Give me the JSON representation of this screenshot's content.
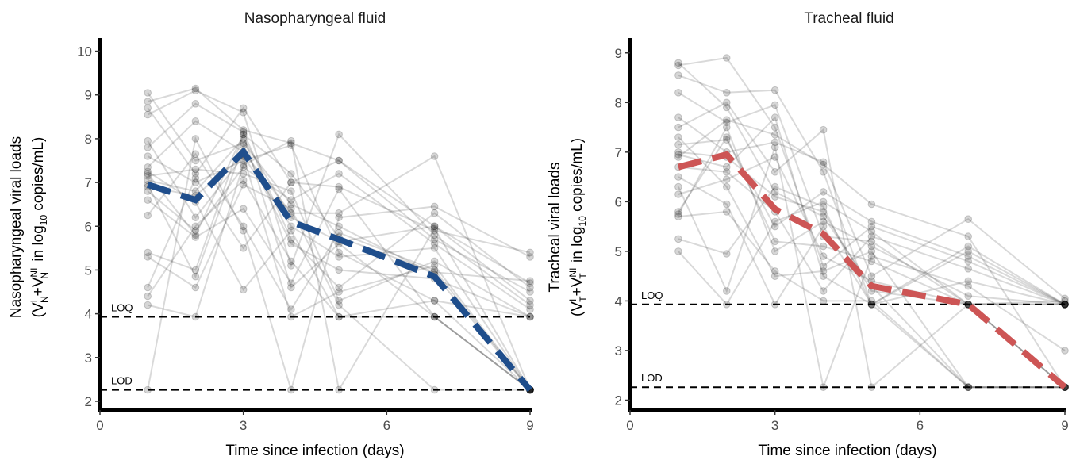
{
  "chart_data": [
    {
      "type": "line",
      "title": "Nasopharyngeal fluid",
      "xlabel": "Time since infection (days)",
      "ylabel_line1": "Nasopharyngeal viral loads",
      "ylabel_line2": {
        "open": "(V",
        "sup1": "I",
        "sub1": "N",
        "plus": "+V",
        "sup2": "NI",
        "sub2": "N",
        "mid": " in log",
        "sub3": "10",
        "end": " copies/mL)"
      },
      "xlim": [
        0,
        9
      ],
      "ylim": [
        1.8,
        10.3
      ],
      "xticks": [
        0,
        3,
        6,
        9
      ],
      "yticks": [
        2,
        3,
        4,
        5,
        6,
        7,
        8,
        9,
        10
      ],
      "reference_lines": [
        {
          "label": "LOQ",
          "y": 3.93
        },
        {
          "label": "LOD",
          "y": 2.26
        }
      ],
      "mean_color": "#1f4e8c",
      "mean_curve": {
        "x": [
          1,
          2,
          3,
          4,
          5,
          7,
          9
        ],
        "y": [
          6.95,
          6.6,
          7.7,
          6.1,
          5.7,
          4.85,
          2.26
        ]
      },
      "individuals": [
        {
          "x": [
            1,
            2,
            3,
            4,
            5,
            7,
            9
          ],
          "y": [
            9.05,
            7.5,
            7.9,
            6.5,
            6.0,
            4.9,
            2.26
          ]
        },
        {
          "x": [
            1,
            2,
            3,
            4,
            5,
            7,
            9
          ],
          "y": [
            8.85,
            9.15,
            8.2,
            7.9,
            7.5,
            6.0,
            4.7
          ]
        },
        {
          "x": [
            1,
            2,
            3,
            4,
            5,
            7,
            9
          ],
          "y": [
            8.7,
            7.2,
            8.7,
            7.0,
            6.9,
            5.9,
            5.4
          ]
        },
        {
          "x": [
            1,
            2,
            3,
            4,
            5,
            7,
            9
          ],
          "y": [
            8.55,
            9.1,
            8.6,
            5.1,
            8.1,
            5.8,
            4.2
          ]
        },
        {
          "x": [
            1,
            2,
            3,
            4,
            5,
            7,
            9
          ],
          "y": [
            7.95,
            6.2,
            7.6,
            6.0,
            5.3,
            5.5,
            2.26
          ]
        },
        {
          "x": [
            1,
            2,
            3,
            4,
            5,
            7,
            9
          ],
          "y": [
            7.8,
            8.8,
            8.15,
            5.7,
            4.6,
            6.3,
            4.6
          ]
        },
        {
          "x": [
            1,
            2,
            3,
            4,
            5,
            7,
            9
          ],
          "y": [
            7.6,
            7.0,
            7.5,
            7.85,
            5.4,
            4.3,
            2.26
          ]
        },
        {
          "x": [
            1,
            2,
            3,
            4,
            5,
            7,
            9
          ],
          "y": [
            7.35,
            8.4,
            7.7,
            6.3,
            6.3,
            7.6,
            2.26
          ]
        },
        {
          "x": [
            1,
            2,
            3,
            4,
            5,
            7,
            9
          ],
          "y": [
            7.25,
            6.55,
            4.55,
            5.9,
            3.93,
            3.93,
            2.26
          ]
        },
        {
          "x": [
            1,
            2,
            3,
            4,
            5,
            7,
            9
          ],
          "y": [
            7.15,
            7.3,
            7.2,
            6.8,
            4.3,
            5.2,
            3.93
          ]
        },
        {
          "x": [
            1,
            2,
            3,
            4,
            5,
            7,
            9
          ],
          "y": [
            7.05,
            6.8,
            8.0,
            6.2,
            5.65,
            6.0,
            4.3
          ]
        },
        {
          "x": [
            1,
            2,
            3,
            4,
            5,
            7,
            9
          ],
          "y": [
            6.95,
            4.85,
            7.85,
            5.6,
            5.0,
            4.8,
            3.93
          ]
        },
        {
          "x": [
            1,
            2,
            3,
            4,
            5,
            7,
            9
          ],
          "y": [
            6.8,
            5.9,
            7.35,
            6.6,
            7.2,
            5.6,
            4.1
          ]
        },
        {
          "x": [
            1,
            2,
            3,
            4,
            5,
            7,
            9
          ],
          "y": [
            6.6,
            5.75,
            6.4,
            4.7,
            6.85,
            3.93,
            2.26
          ]
        },
        {
          "x": [
            1,
            2,
            3,
            4,
            5,
            7,
            9
          ],
          "y": [
            6.25,
            7.65,
            6.0,
            4.1,
            5.85,
            5.0,
            2.26
          ]
        },
        {
          "x": [
            1,
            2,
            3,
            4,
            5,
            7,
            9
          ],
          "y": [
            5.4,
            5.0,
            8.1,
            4.6,
            5.6,
            3.93,
            2.26
          ]
        },
        {
          "x": [
            1,
            2,
            3,
            4,
            5,
            7,
            9
          ],
          "y": [
            5.3,
            4.6,
            6.95,
            6.4,
            4.2,
            2.26,
            2.26
          ]
        },
        {
          "x": [
            1,
            2,
            3,
            4,
            5,
            7,
            9
          ],
          "y": [
            4.6,
            7.1,
            5.5,
            7.0,
            7.5,
            5.7,
            4.5
          ]
        },
        {
          "x": [
            1,
            2,
            3,
            4,
            5,
            7,
            9
          ],
          "y": [
            4.4,
            6.0,
            7.05,
            5.2,
            3.93,
            4.3,
            3.93
          ]
        },
        {
          "x": [
            1,
            2,
            3,
            4,
            5,
            7,
            9
          ],
          "y": [
            4.2,
            3.93,
            7.4,
            7.95,
            2.26,
            5.95,
            2.26
          ]
        },
        {
          "x": [
            1,
            2,
            3,
            4,
            5,
            7,
            9
          ],
          "y": [
            2.26,
            8.0,
            5.9,
            2.26,
            6.2,
            6.45,
            5.3
          ]
        },
        {
          "x": [
            1,
            2,
            3,
            4,
            5,
            7,
            9
          ],
          "y": [
            6.9,
            6.7,
            7.6,
            3.93,
            4.5,
            5.1,
            2.26
          ]
        },
        {
          "x": [
            1,
            2,
            3,
            4,
            5,
            7,
            9
          ],
          "y": [
            7.2,
            5.8,
            8.1,
            7.2,
            5.75,
            4.95,
            4.75
          ]
        }
      ]
    },
    {
      "type": "line",
      "title": "Tracheal fluid",
      "xlabel": "Time since infection (days)",
      "ylabel_line1": "Tracheal viral loads",
      "ylabel_line2": {
        "open": "(V",
        "sup1": "I",
        "sub1": "T",
        "plus": "+V",
        "sup2": "NI",
        "sub2": "T",
        "mid": " in log",
        "sub3": "10",
        "end": " copies/mL)"
      },
      "xlim": [
        0,
        9
      ],
      "ylim": [
        1.8,
        9.3
      ],
      "xticks": [
        0,
        3,
        6,
        9
      ],
      "yticks": [
        2,
        3,
        4,
        5,
        6,
        7,
        8,
        9
      ],
      "reference_lines": [
        {
          "label": "LOQ",
          "y": 3.93
        },
        {
          "label": "LOD",
          "y": 2.26
        }
      ],
      "mean_color": "#cd5555",
      "mean_curve": {
        "x": [
          1,
          2,
          3,
          4,
          5,
          7,
          9
        ],
        "y": [
          6.7,
          6.95,
          5.85,
          5.35,
          4.3,
          3.93,
          2.26
        ]
      },
      "individuals": [
        {
          "x": [
            1,
            2,
            3,
            4,
            5,
            7,
            9
          ],
          "y": [
            8.8,
            7.9,
            6.2,
            5.7,
            4.3,
            2.26,
            2.26
          ]
        },
        {
          "x": [
            1,
            2,
            3,
            4,
            5,
            7,
            9
          ],
          "y": [
            8.75,
            8.9,
            7.5,
            4.7,
            5.5,
            4.8,
            3.93
          ]
        },
        {
          "x": [
            1,
            2,
            3,
            4,
            5,
            7,
            9
          ],
          "y": [
            8.55,
            8.2,
            8.25,
            6.6,
            3.93,
            4.4,
            3.93
          ]
        },
        {
          "x": [
            1,
            2,
            3,
            4,
            5,
            7,
            9
          ],
          "y": [
            8.2,
            7.6,
            7.95,
            5.3,
            5.2,
            3.93,
            3.93
          ]
        },
        {
          "x": [
            1,
            2,
            3,
            4,
            5,
            7,
            9
          ],
          "y": [
            7.7,
            7.0,
            7.2,
            6.8,
            4.5,
            5.65,
            4.05
          ]
        },
        {
          "x": [
            1,
            2,
            3,
            4,
            5,
            7,
            9
          ],
          "y": [
            7.5,
            8.0,
            6.6,
            7.45,
            2.26,
            3.93,
            2.26
          ]
        },
        {
          "x": [
            1,
            2,
            3,
            4,
            5,
            7,
            9
          ],
          "y": [
            7.3,
            6.3,
            4.5,
            4.6,
            5.0,
            2.26,
            2.26
          ]
        },
        {
          "x": [
            1,
            2,
            3,
            4,
            5,
            7,
            9
          ],
          "y": [
            7.15,
            7.25,
            5.5,
            6.2,
            5.6,
            4.9,
            3.93
          ]
        },
        {
          "x": [
            1,
            2,
            3,
            4,
            5,
            7,
            9
          ],
          "y": [
            7.0,
            6.9,
            6.1,
            5.8,
            4.2,
            3.93,
            2.26
          ]
        },
        {
          "x": [
            1,
            2,
            3,
            4,
            5,
            7,
            9
          ],
          "y": [
            6.9,
            7.65,
            7.35,
            6.75,
            5.95,
            5.3,
            2.26
          ]
        },
        {
          "x": [
            1,
            2,
            3,
            4,
            5,
            7,
            9
          ],
          "y": [
            6.7,
            6.6,
            5.8,
            4.2,
            5.3,
            4.65,
            3.93
          ]
        },
        {
          "x": [
            1,
            2,
            3,
            4,
            5,
            7,
            9
          ],
          "y": [
            6.5,
            5.95,
            3.93,
            5.5,
            3.93,
            2.26,
            2.26
          ]
        },
        {
          "x": [
            1,
            2,
            3,
            4,
            5,
            7,
            9
          ],
          "y": [
            6.3,
            4.2,
            7.1,
            2.26,
            4.9,
            4.3,
            3.0
          ]
        },
        {
          "x": [
            1,
            2,
            3,
            4,
            5,
            7,
            9
          ],
          "y": [
            6.15,
            6.45,
            6.9,
            4.9,
            4.4,
            3.93,
            3.93
          ]
        },
        {
          "x": [
            1,
            2,
            3,
            4,
            5,
            7,
            9
          ],
          "y": [
            5.8,
            7.3,
            5.2,
            5.1,
            4.8,
            3.93,
            4.0
          ]
        },
        {
          "x": [
            1,
            2,
            3,
            4,
            5,
            7,
            9
          ],
          "y": [
            5.7,
            5.8,
            4.6,
            4.0,
            4.0,
            2.26,
            2.26
          ]
        },
        {
          "x": [
            1,
            2,
            3,
            4,
            5,
            7,
            9
          ],
          "y": [
            5.25,
            4.95,
            6.3,
            5.9,
            3.93,
            5.0,
            3.93
          ]
        },
        {
          "x": [
            1,
            2,
            3,
            4,
            5,
            7,
            9
          ],
          "y": [
            5.0,
            3.93,
            5.6,
            6.0,
            5.4,
            3.93,
            2.26
          ]
        },
        {
          "x": [
            1,
            2,
            3,
            4,
            5,
            7,
            9
          ],
          "y": [
            6.95,
            6.7,
            7.7,
            4.5,
            3.93,
            5.1,
            3.93
          ]
        },
        {
          "x": [
            1,
            2,
            3,
            4,
            5,
            7,
            9
          ],
          "y": [
            5.75,
            7.5,
            5.0,
            5.6,
            5.1,
            4.1,
            3.93
          ]
        }
      ]
    }
  ]
}
